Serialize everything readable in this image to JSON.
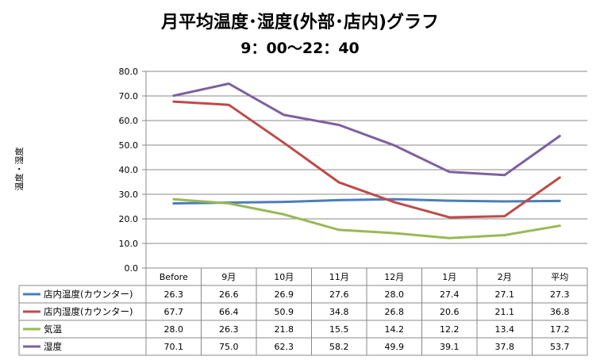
{
  "chart_data": {
    "type": "line",
    "title": "月平均温度･湿度(外部･店内)グラフ",
    "subtitle": "9：00～22：40",
    "ylabel": "温度・湿度",
    "xlabel": "",
    "ylim": [
      0,
      80
    ],
    "yticks": [
      "0.0",
      "10.0",
      "20.0",
      "30.0",
      "40.0",
      "50.0",
      "60.0",
      "70.0",
      "80.0"
    ],
    "grid": true,
    "legend": "data-table",
    "categories": [
      "Before",
      "9月",
      "10月",
      "11月",
      "12月",
      "1月",
      "2月",
      "平均"
    ],
    "series": [
      {
        "name": "店内温度(カウンター)",
        "color": "#4a7ebb",
        "values": [
          26.3,
          26.6,
          26.9,
          27.6,
          28.0,
          27.4,
          27.1,
          27.3
        ],
        "labels": [
          "26.3",
          "26.6",
          "26.9",
          "27.6",
          "28.0",
          "27.4",
          "27.1",
          "27.3"
        ]
      },
      {
        "name": "店内湿度(カウンター)",
        "color": "#be4b48",
        "values": [
          67.7,
          66.4,
          50.9,
          34.8,
          26.8,
          20.6,
          21.1,
          36.8
        ],
        "labels": [
          "67.7",
          "66.4",
          "50.9",
          "34.8",
          "26.8",
          "20.6",
          "21.1",
          "36.8"
        ]
      },
      {
        "name": "気温",
        "color": "#98b954",
        "values": [
          28.0,
          26.3,
          21.8,
          15.5,
          14.2,
          12.2,
          13.4,
          17.2
        ],
        "labels": [
          "28.0",
          "26.3",
          "21.8",
          "15.5",
          "14.2",
          "12.2",
          "13.4",
          "17.2"
        ]
      },
      {
        "name": "湿度",
        "color": "#7d60a0",
        "values": [
          70.1,
          75.0,
          62.3,
          58.2,
          49.9,
          39.1,
          37.8,
          53.7
        ],
        "labels": [
          "70.1",
          "75.0",
          "62.3",
          "58.2",
          "49.9",
          "39.1",
          "37.8",
          "53.7"
        ]
      }
    ]
  }
}
